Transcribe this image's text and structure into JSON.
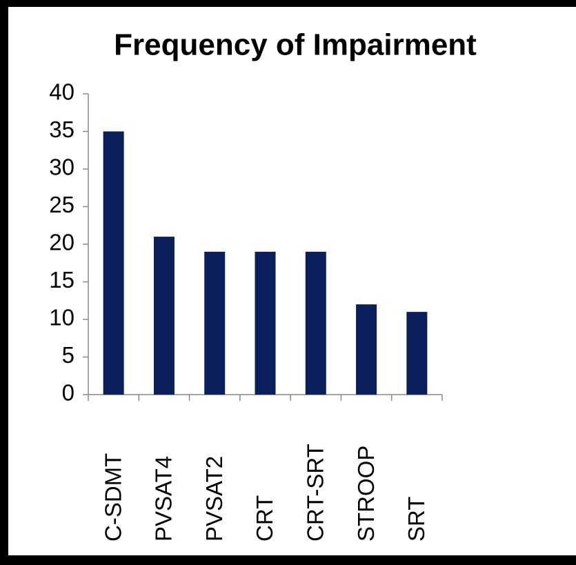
{
  "chart_data": {
    "type": "bar",
    "title": "Frequency of Impairment",
    "categories": [
      "C-SDMT",
      "PVSAT4",
      "PVSAT2",
      "CRT",
      "CRT-SRT",
      "STROOP",
      "SRT"
    ],
    "values": [
      35,
      21,
      19,
      19,
      19,
      12,
      11
    ],
    "color": "#0b1f5c",
    "ylim": [
      0,
      40
    ],
    "yticks": [
      0,
      5,
      10,
      15,
      20,
      25,
      30,
      35,
      40
    ],
    "grid": false
  }
}
